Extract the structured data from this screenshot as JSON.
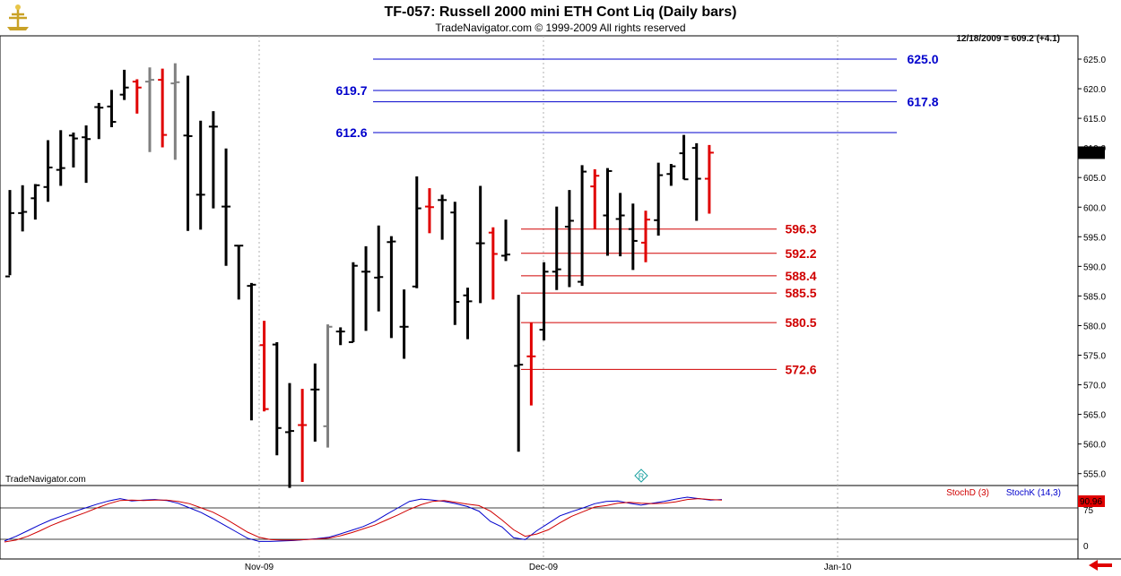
{
  "header": {
    "title": "TF-057:  Russell 2000 mini ETH Cont Liq  (Daily bars)",
    "subtitle": "TradeNavigator.com © 1999-2009 All rights reserved",
    "last_bar_info": "12/18/2009 = 609.2 (+4.1)",
    "watermark": "TradeNavigator.com"
  },
  "colors": {
    "up_bar": "#000000",
    "down_bar": "#e00000",
    "neutral_bar": "#808080",
    "resistance": "#0000cc",
    "support": "#d00000",
    "stoch_k": "#0000cc",
    "stoch_d": "#d00000"
  },
  "chart_data": [
    {
      "type": "ohlc",
      "title": "TF-057:  Russell 2000 mini ETH Cont Liq  (Daily bars)",
      "x_ticks": [
        "Nov-09",
        "Dec-09",
        "Jan-10"
      ],
      "y_ticks": [
        555,
        560,
        565,
        570,
        575,
        580,
        585,
        590,
        595,
        600,
        605,
        610,
        615,
        620,
        625
      ],
      "y_tick_labels": [
        "555.0",
        "560.0",
        "565.0",
        "570.0",
        "575.0",
        "580.0",
        "585.0",
        "590.0",
        "595.0",
        "600.0",
        "605.0",
        "610.0",
        "615.0",
        "620.0",
        "625.0"
      ],
      "ylim": [
        552.5,
        628.5
      ],
      "grid": true,
      "last_value": "609.2",
      "bars": [
        {
          "h": 602.9,
          "l": 588.5,
          "o": 588.3,
          "c": 599.0,
          "col": "black"
        },
        {
          "h": 603.7,
          "l": 595.9,
          "o": 599.0,
          "c": 599.2,
          "col": "black"
        },
        {
          "h": 603.9,
          "l": 597.9,
          "o": 601.5,
          "c": 603.7,
          "col": "black"
        },
        {
          "h": 611.3,
          "l": 600.9,
          "o": 603.4,
          "c": 606.7,
          "col": "black"
        },
        {
          "h": 613.0,
          "l": 603.6,
          "o": 606.3,
          "c": 606.6,
          "col": "black"
        },
        {
          "h": 612.6,
          "l": 606.7,
          "o": 612.1,
          "c": 611.6,
          "col": "black"
        },
        {
          "h": 613.8,
          "l": 604.1,
          "o": 611.8,
          "c": 611.5,
          "col": "black"
        },
        {
          "h": 617.6,
          "l": 611.5,
          "o": 616.9,
          "c": 616.8,
          "col": "black"
        },
        {
          "h": 619.8,
          "l": 613.5,
          "o": 617.0,
          "c": 614.4,
          "col": "black"
        },
        {
          "h": 623.2,
          "l": 618.1,
          "o": 619.0,
          "c": 620.2,
          "col": "black"
        },
        {
          "h": 621.6,
          "l": 615.8,
          "o": 621.2,
          "c": 620.2,
          "col": "red"
        },
        {
          "h": 623.6,
          "l": 609.3,
          "o": 621.2,
          "c": 621.5,
          "col": "gray"
        },
        {
          "h": 623.4,
          "l": 610.1,
          "o": 621.5,
          "c": 612.2,
          "col": "red"
        },
        {
          "h": 624.3,
          "l": 608.0,
          "o": 620.9,
          "c": 621.1,
          "col": "gray"
        },
        {
          "h": 622.2,
          "l": 596.0,
          "o": 612.1,
          "c": 612.0,
          "col": "black"
        },
        {
          "h": 614.6,
          "l": 596.2,
          "o": 602.1,
          "c": 602.1,
          "col": "black"
        },
        {
          "h": 616.2,
          "l": 599.8,
          "o": 613.6,
          "c": 613.6,
          "col": "black"
        },
        {
          "h": 609.9,
          "l": 590.1,
          "o": 600.1,
          "c": 600.1,
          "col": "black"
        },
        {
          "h": 593.5,
          "l": 584.4,
          "o": 593.5,
          "c": 593.5,
          "col": "black"
        },
        {
          "h": 587.2,
          "l": 564.0,
          "o": 586.7,
          "c": 586.9,
          "col": "black"
        },
        {
          "h": 580.8,
          "l": 565.5,
          "o": 576.7,
          "c": 565.9,
          "col": "red"
        },
        {
          "h": 577.2,
          "l": 558.1,
          "o": 576.8,
          "c": 562.7,
          "col": "black"
        },
        {
          "h": 570.3,
          "l": 552.6,
          "o": 562.0,
          "c": 562.2,
          "col": "black"
        },
        {
          "h": 569.3,
          "l": 553.6,
          "o": 563.2,
          "c": 563.2,
          "col": "red"
        },
        {
          "h": 573.6,
          "l": 560.4,
          "o": 569.2,
          "c": 569.2,
          "col": "black"
        },
        {
          "h": 580.2,
          "l": 559.4,
          "o": 563.0,
          "c": 579.8,
          "col": "gray"
        },
        {
          "h": 579.7,
          "l": 576.7,
          "o": 579.0,
          "c": 579.0,
          "col": "black"
        },
        {
          "h": 590.7,
          "l": 577.2,
          "o": 577.2,
          "c": 590.1,
          "col": "black"
        },
        {
          "h": 593.4,
          "l": 579.1,
          "o": 589.1,
          "c": 589.1,
          "col": "black"
        },
        {
          "h": 596.9,
          "l": 582.4,
          "o": 588.1,
          "c": 588.2,
          "col": "black"
        },
        {
          "h": 595.1,
          "l": 577.9,
          "o": 594.1,
          "c": 594.2,
          "col": "black"
        },
        {
          "h": 586.1,
          "l": 574.4,
          "o": 579.8,
          "c": 579.8,
          "col": "black"
        },
        {
          "h": 605.2,
          "l": 586.3,
          "o": 586.6,
          "c": 599.8,
          "col": "black"
        },
        {
          "h": 603.2,
          "l": 595.6,
          "o": 600.1,
          "c": 600.0,
          "col": "red"
        },
        {
          "h": 602.1,
          "l": 594.5,
          "o": 601.2,
          "c": 601.2,
          "col": "black"
        },
        {
          "h": 600.9,
          "l": 580.1,
          "o": 599.1,
          "c": 584.0,
          "col": "black"
        },
        {
          "h": 586.4,
          "l": 577.7,
          "o": 585.1,
          "c": 584.1,
          "col": "black"
        },
        {
          "h": 603.6,
          "l": 583.8,
          "o": 593.9,
          "c": 593.9,
          "col": "black"
        },
        {
          "h": 596.6,
          "l": 584.4,
          "o": 595.7,
          "c": 592.1,
          "col": "red"
        },
        {
          "h": 597.9,
          "l": 590.9,
          "o": 591.8,
          "c": 592.0,
          "col": "black"
        },
        {
          "h": 585.2,
          "l": 558.7,
          "o": 573.2,
          "c": 573.4,
          "col": "black"
        },
        {
          "h": 580.5,
          "l": 566.5,
          "o": 574.8,
          "c": 574.8,
          "col": "red"
        },
        {
          "h": 590.7,
          "l": 577.5,
          "o": 579.3,
          "c": 589.1,
          "col": "black"
        },
        {
          "h": 600.1,
          "l": 586.0,
          "o": 589.1,
          "c": 589.5,
          "col": "black"
        },
        {
          "h": 602.9,
          "l": 586.5,
          "o": 596.7,
          "c": 597.7,
          "col": "black"
        },
        {
          "h": 607.1,
          "l": 586.7,
          "o": 587.4,
          "c": 606.0,
          "col": "black"
        },
        {
          "h": 606.4,
          "l": 596.3,
          "o": 603.5,
          "c": 605.3,
          "col": "red"
        },
        {
          "h": 606.6,
          "l": 591.8,
          "o": 598.6,
          "c": 606.1,
          "col": "black"
        },
        {
          "h": 602.4,
          "l": 591.7,
          "o": 598.0,
          "c": 598.6,
          "col": "black"
        },
        {
          "h": 600.6,
          "l": 589.4,
          "o": 596.3,
          "c": 594.3,
          "col": "black"
        },
        {
          "h": 599.4,
          "l": 590.7,
          "o": 594.0,
          "c": 597.9,
          "col": "red"
        },
        {
          "h": 607.5,
          "l": 595.2,
          "o": 597.8,
          "c": 605.4,
          "col": "black"
        },
        {
          "h": 607.3,
          "l": 603.6,
          "o": 605.6,
          "c": 606.9,
          "col": "black"
        },
        {
          "h": 612.2,
          "l": 604.7,
          "o": 609.1,
          "c": 604.7,
          "col": "black"
        },
        {
          "h": 610.8,
          "l": 597.7,
          "o": 610.0,
          "c": 604.8,
          "col": "black"
        },
        {
          "h": 610.5,
          "l": 598.9,
          "o": 604.8,
          "c": 609.2,
          "col": "red"
        }
      ],
      "resistance_levels": [
        {
          "value": 625.0,
          "label": "625.0"
        },
        {
          "value": 619.7,
          "label": "619.7"
        },
        {
          "value": 617.8,
          "label": "617.8"
        },
        {
          "value": 612.6,
          "label": "612.6"
        }
      ],
      "support_levels": [
        {
          "value": 596.3,
          "label": "596.3"
        },
        {
          "value": 592.2,
          "label": "592.2"
        },
        {
          "value": 588.4,
          "label": "588.4"
        },
        {
          "value": 585.5,
          "label": "585.5"
        },
        {
          "value": 580.5,
          "label": "580.5"
        },
        {
          "value": 572.6,
          "label": "572.6"
        }
      ]
    },
    {
      "type": "line",
      "title": "",
      "series_labels": [
        "StochD (3)",
        "StochK (14,3)"
      ],
      "y_ticks": [
        0,
        75
      ],
      "y_tick_labels": [
        "0",
        "75"
      ],
      "last_value": "90.96",
      "series": [
        {
          "name": "StochK (14,3)",
          "values": [
            4,
            14,
            26,
            38,
            49,
            58,
            67,
            75,
            83,
            90,
            95,
            90,
            92,
            93,
            91,
            85,
            75,
            65,
            52,
            38,
            24,
            10,
            3,
            3,
            4,
            5,
            7,
            9,
            12,
            19,
            27,
            35,
            46,
            61,
            75,
            89,
            94,
            92,
            89,
            84,
            78,
            68,
            46,
            34,
            11,
            7,
            26,
            42,
            58,
            67,
            75,
            84,
            89,
            90,
            85,
            81,
            85,
            89,
            94,
            98,
            95,
            92,
            93
          ]
        },
        {
          "name": "StochD (3)",
          "values": [
            2,
            6,
            14,
            25,
            37,
            47,
            56,
            65,
            75,
            84,
            91,
            92,
            91,
            92,
            92,
            89,
            84,
            75,
            66,
            53,
            38,
            23,
            12,
            7,
            6,
            6,
            7,
            8,
            10,
            15,
            22,
            30,
            38,
            49,
            60,
            72,
            82,
            89,
            91,
            87,
            83,
            80,
            68,
            49,
            28,
            14,
            19,
            28,
            43,
            57,
            67,
            77,
            80,
            85,
            87,
            85,
            84,
            85,
            88,
            93,
            95,
            93,
            92
          ]
        }
      ]
    }
  ]
}
